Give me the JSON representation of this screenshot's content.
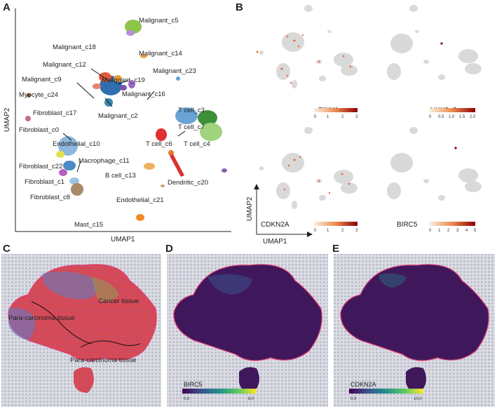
{
  "panels": {
    "a": "A",
    "b": "B",
    "c": "C",
    "d": "D",
    "e": "E"
  },
  "umap_a": {
    "xlabel": "UMAP1",
    "ylabel": "UMAP2",
    "clusters": [
      "Malignant_c5",
      "Malignant_c18",
      "Malignant_c14",
      "Malignant_c12",
      "Malignant_c19",
      "Malignant_c23",
      "Malignant_c9",
      "Malignant_c16",
      "Myocyte_c24",
      "Malignant_c2",
      "T cell_c3",
      "Fibroblast_c17",
      "T cell_c7",
      "Fibroblast_c0",
      "T cell_c4",
      "Endothelial_c10",
      "T cell_c6",
      "Macrophage_c11",
      "Fibroblast_c22",
      "B cell_c13",
      "Dendritic_c20",
      "Fibroblast_c1",
      "Fibroblast_c8",
      "Endothelial_c21",
      "Mast_c15"
    ]
  },
  "feature_plots": {
    "xlabel": "UMAP1",
    "ylabel": "UMAP2",
    "items": [
      {
        "gene": "PINK1",
        "ticks": [
          "0",
          "1",
          "2",
          "3"
        ]
      },
      {
        "gene": "NKX2−3",
        "ticks": [
          "0",
          "0.5",
          "1.0",
          "1.5",
          "2.0"
        ]
      },
      {
        "gene": "CDKN2A",
        "ticks": [
          "0",
          "1",
          "2",
          "3"
        ]
      },
      {
        "gene": "BIRC5",
        "ticks": [
          "0",
          "1",
          "2",
          "3",
          "4",
          "5"
        ]
      }
    ]
  },
  "spatial": {
    "c_labels": {
      "cancer": "Cancer tissue",
      "para1": "Para-carcinoma tissue",
      "para2": "Para-carcinoma tissue"
    },
    "d_legend": {
      "gene": "BIRC5",
      "min": "0.0",
      "max": "8.0"
    },
    "e_legend": {
      "gene": "CDKN2A",
      "min": "0.0",
      "max": "10.0"
    }
  },
  "colors": {
    "low": "#f4ecd8",
    "high": "#8b0000",
    "viridis_low": "#440154",
    "viridis_high": "#fde725"
  }
}
